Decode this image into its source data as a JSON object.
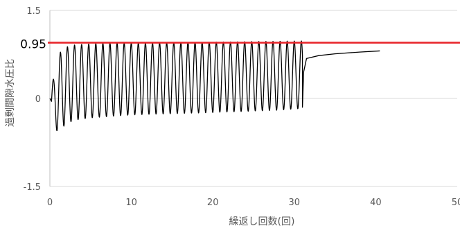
{
  "chart_data": {
    "type": "line",
    "title": "",
    "xlabel": "繰返し回数(回)",
    "ylabel": "過剰間隙水圧比",
    "xlim": [
      0,
      50
    ],
    "ylim": [
      -1.5,
      1.5
    ],
    "x_ticks": [
      "0",
      "10",
      "20",
      "30",
      "40",
      "50"
    ],
    "y_ticks": [
      "1.5",
      "0",
      "-1.5"
    ],
    "grid": "horizontal",
    "legend": "none",
    "reference_line": {
      "label": "0.95",
      "y": 0.95,
      "color": "#e8262b"
    },
    "series": [
      {
        "color": "#000000",
        "cycle_period": 0.87,
        "oscillation": {
          "x_start": 0.2,
          "x_end": 31.0,
          "peaks": [
            [
              0.5,
              0.52
            ],
            [
              1.5,
              0.86
            ],
            [
              3.0,
              0.91
            ],
            [
              6.0,
              0.94
            ],
            [
              15.0,
              0.95
            ],
            [
              25.0,
              0.97
            ],
            [
              31.0,
              0.98
            ]
          ],
          "troughs": [
            [
              0.9,
              -0.62
            ],
            [
              1.9,
              -0.44
            ],
            [
              3.0,
              -0.37
            ],
            [
              5.0,
              -0.33
            ],
            [
              10.0,
              -0.28
            ],
            [
              20.0,
              -0.24
            ],
            [
              28.0,
              -0.2
            ],
            [
              31.0,
              -0.17
            ]
          ]
        },
        "tail": [
          [
            31.0,
            -0.15
          ],
          [
            31.15,
            0.45
          ],
          [
            31.5,
            0.68
          ],
          [
            33.0,
            0.73
          ],
          [
            35.0,
            0.76
          ],
          [
            38.0,
            0.79
          ],
          [
            40.5,
            0.81
          ]
        ]
      }
    ]
  }
}
